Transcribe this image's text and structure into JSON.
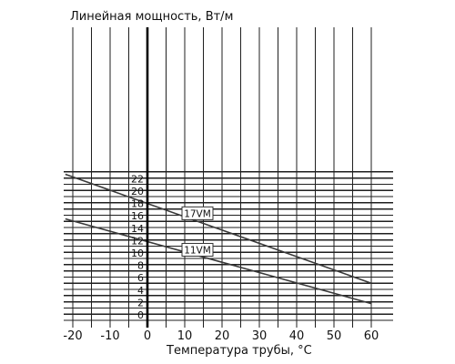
{
  "chart_data": {
    "type": "line",
    "ylabel": "Линейная мощность, Вт/м",
    "xlabel": "Температура трубы, °С",
    "xlim": [
      -20,
      60
    ],
    "ylim": [
      0,
      24
    ],
    "x_ticks": [
      -20,
      -10,
      0,
      10,
      20,
      30,
      40,
      50,
      60
    ],
    "y_tick_labels": [
      0,
      2,
      4,
      6,
      8,
      10,
      12,
      14,
      16,
      18,
      20,
      22
    ],
    "grid": true,
    "series": [
      {
        "name": "17VM",
        "x": [
          -22,
          60
        ],
        "y": [
          23.6,
          6.0
        ],
        "label_at": [
          10,
          17.3
        ]
      },
      {
        "name": "11VM",
        "x": [
          -22,
          60
        ],
        "y": [
          16.4,
          2.7
        ],
        "label_at": [
          10,
          11.4
        ]
      }
    ]
  }
}
